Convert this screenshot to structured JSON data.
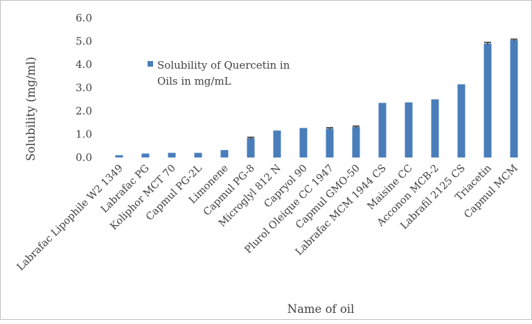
{
  "chart_data": {
    "type": "bar",
    "xlabel": "Name of oil",
    "ylabel": "Solubility (mg/ml)",
    "ylim": [
      0,
      6
    ],
    "yticks": [
      "0.0",
      "1.0",
      "2.0",
      "3.0",
      "4.0",
      "5.0",
      "6.0"
    ],
    "grid": false,
    "legend_position": "top-left",
    "bar_color": "#4a7ebb",
    "error_bar_color": "#404040",
    "categories": [
      "Labrafac Lipophile W2 1349",
      "Labrafac PG",
      "Koliphor MCT 70",
      "Capmul PG-2L",
      "Limonene",
      "Capmul PG-8",
      "Microglyl 812 N",
      "Capryol 90",
      "Plurol Oleique CC 1947",
      "Capmul GMO-50",
      "Labrafac MCM 1944 CS",
      "Maisine CC",
      "Acconon MCB-2",
      "Labrafil 2125 CS",
      "Triacetin",
      "Capmul MCM"
    ],
    "series": [
      {
        "name": "Solubility of Quercetin in Oils in mg/mL",
        "values": [
          0.1,
          0.17,
          0.2,
          0.2,
          0.32,
          0.83,
          1.16,
          1.27,
          1.24,
          1.31,
          2.35,
          2.37,
          2.5,
          3.15,
          4.9,
          5.05
        ],
        "errors": [
          0,
          0,
          0,
          0,
          0,
          0.04,
          0,
          0,
          0.04,
          0.04,
          0,
          0,
          0,
          0,
          0.05,
          0.04
        ]
      }
    ]
  },
  "legend": {
    "line1": "Solubility of Quercetin in",
    "line2": "Oils in mg/mL"
  }
}
